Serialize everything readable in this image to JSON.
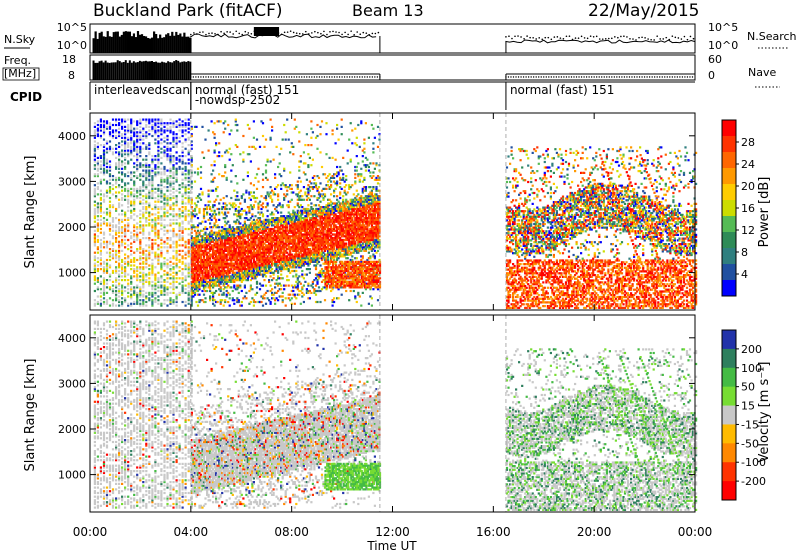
{
  "header": {
    "title": "Buckland Park (fitACF)",
    "beam": "Beam 13",
    "date": "22/May/2015"
  },
  "aux": {
    "nsky_label": "N.Sky",
    "nsearch_label": "N.Search",
    "freq_label_1": "Freq.",
    "freq_label_2": "[MHz]",
    "nave_label": "Nave",
    "cpid_label": "CPID",
    "noise_ticks": [
      "10^5",
      "10^0"
    ],
    "freq_ticks": [
      "18",
      "8"
    ],
    "nave_ticks": [
      "60",
      "0"
    ],
    "cpid_segments": [
      {
        "start": 0.0,
        "label": "interleavedscan"
      },
      {
        "start": 4.0,
        "label": "normal (fast) 151"
      },
      {
        "start": 4.0,
        "label": "-nowdsp-2502",
        "secondary": true
      },
      {
        "start": 16.5,
        "label": "normal (fast) 151"
      }
    ]
  },
  "chart_data": [
    {
      "type": "heatmap",
      "title": "",
      "ylabel": "Slant Range [km]",
      "yticks": [
        1000,
        2000,
        3000,
        4000
      ],
      "ylim": [
        180,
        4500
      ],
      "xlim": [
        0,
        24
      ],
      "colorbar": {
        "label": "Power [dB]",
        "ticks": [
          "28",
          "24",
          "20",
          "16",
          "12",
          "8",
          "4"
        ],
        "colors": [
          "#ff0000",
          "#ff3300",
          "#ff6600",
          "#ff9900",
          "#ffcc00",
          "#ccdd00",
          "#55bb55",
          "#2e8b57",
          "#2f7f7f",
          "#2050a0",
          "#0000ff"
        ]
      }
    },
    {
      "type": "heatmap",
      "title": "",
      "ylabel": "Slant Range [km]",
      "yticks": [
        1000,
        2000,
        3000,
        4000
      ],
      "ylim": [
        180,
        4500
      ],
      "xlim": [
        0,
        24
      ],
      "colorbar": {
        "label": "Velocity [m s⁻¹]",
        "ticks": [
          "200",
          "100",
          "50",
          "15",
          "-15",
          "-50",
          "-100",
          "-200"
        ],
        "colors": [
          "#2233aa",
          "#2e7f5e",
          "#44bb44",
          "#77dd33",
          "#c8c8c8",
          "#ffbb00",
          "#ff8800",
          "#ff3300",
          "#ff0000"
        ]
      }
    }
  ],
  "xaxis": {
    "label": "Time UT",
    "ticks": [
      "00:00",
      "04:00",
      "08:00",
      "12:00",
      "16:00",
      "20:00",
      "00:00"
    ]
  }
}
